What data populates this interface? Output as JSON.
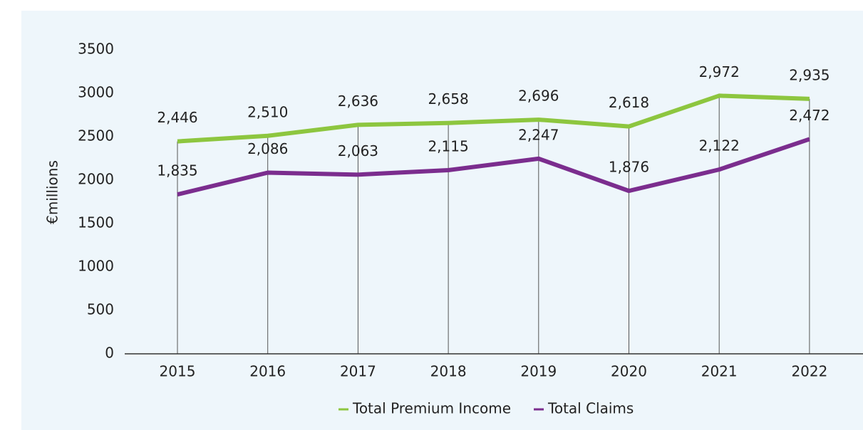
{
  "chart_data": {
    "type": "line",
    "y_label": "€millions",
    "categories": [
      "2015",
      "2016",
      "2017",
      "2018",
      "2019",
      "2020",
      "2021",
      "2022"
    ],
    "series": [
      {
        "name": "Total Premium Income",
        "color": "#8dc63f",
        "values": [
          2446,
          2510,
          2636,
          2658,
          2696,
          2618,
          2972,
          2935
        ],
        "value_labels": [
          "2,446",
          "2,510",
          "2,636",
          "2,658",
          "2,696",
          "2,618",
          "2,972",
          "2,935"
        ]
      },
      {
        "name": "Total Claims",
        "color": "#7b2d8e",
        "values": [
          1835,
          2086,
          2063,
          2115,
          2247,
          1876,
          2122,
          2472
        ],
        "value_labels": [
          "1,835",
          "2,086",
          "2,063",
          "2,115",
          "2,247",
          "1,876",
          "2,122",
          "2,472"
        ]
      }
    ],
    "ylim": [
      0,
      3500
    ],
    "yticks": [
      0,
      500,
      1000,
      1500,
      2000,
      2500,
      3000,
      3500
    ],
    "legend": "bottom"
  }
}
